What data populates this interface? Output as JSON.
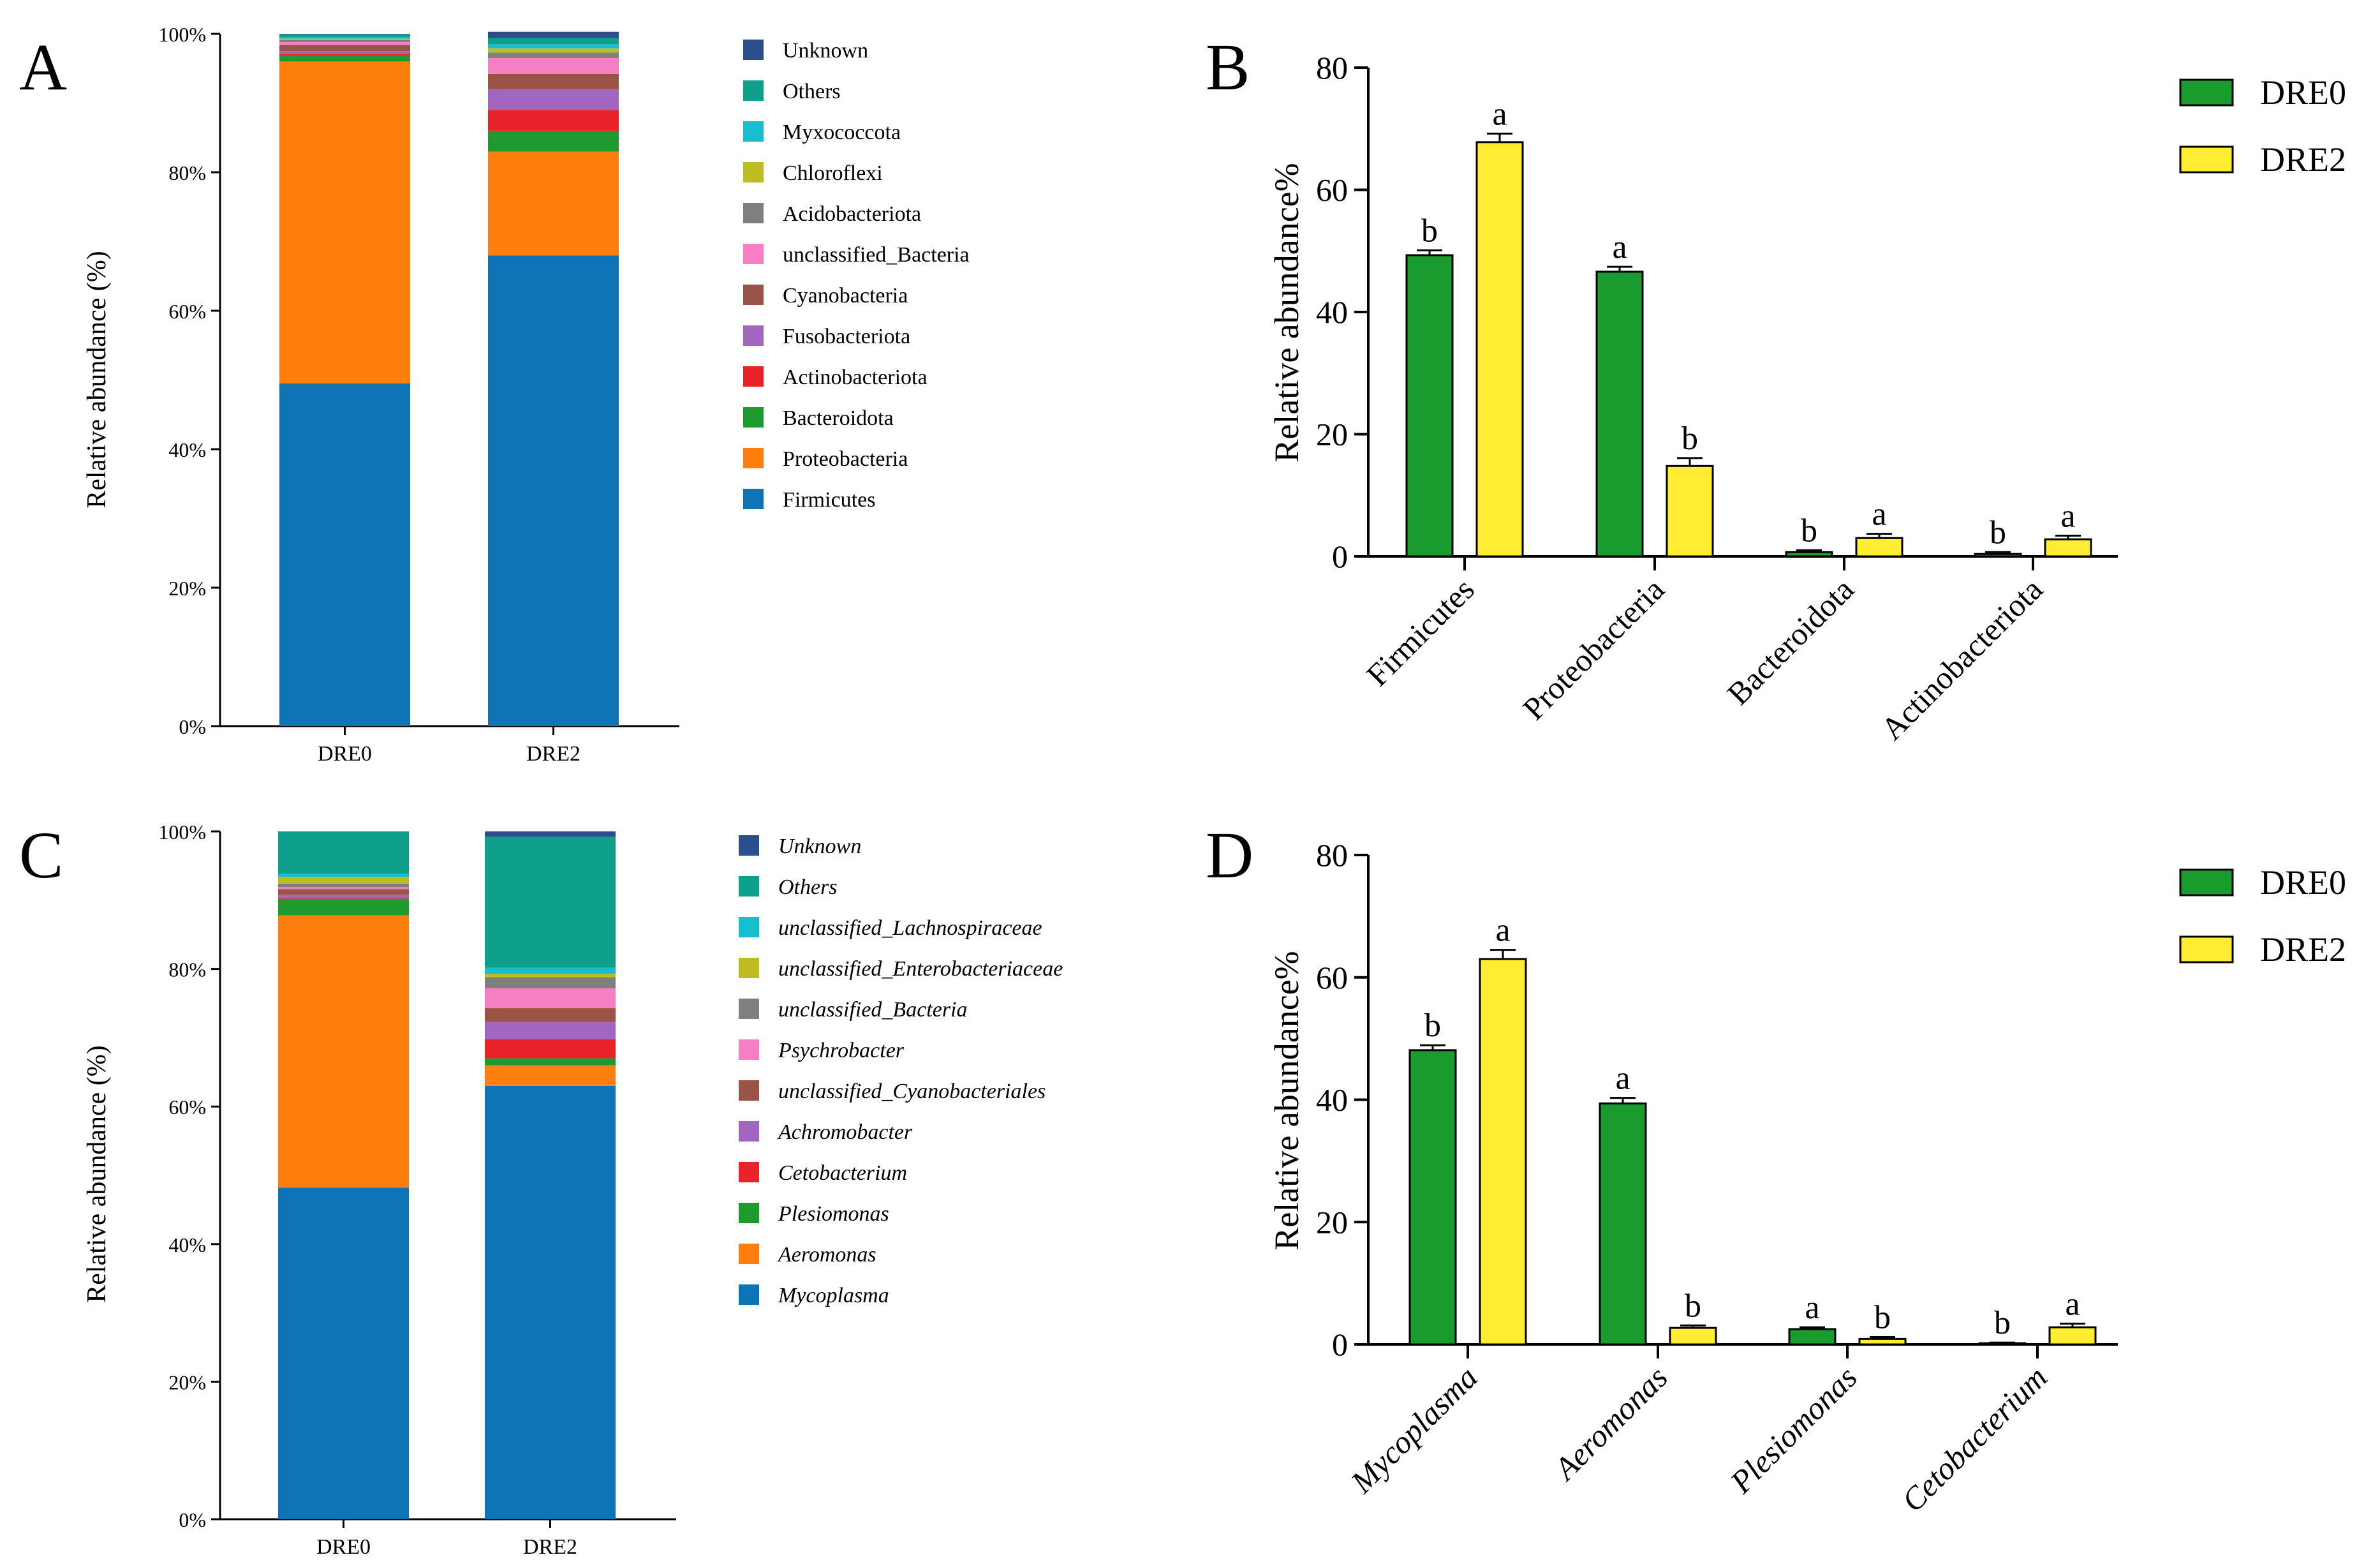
{
  "chart_data": [
    {
      "panel": "A",
      "type": "stacked-bar",
      "ylabel": "Relative abundance (%)",
      "y_ticks": [
        "0%",
        "20%",
        "40%",
        "60%",
        "80%",
        "100%"
      ],
      "ylim": [
        0,
        100
      ],
      "categories": [
        "DRE0",
        "DRE2"
      ],
      "legend_italic": false,
      "series": [
        {
          "name": "Firmicutes",
          "color": "#0F74B5",
          "values": [
            49.5,
            68.0
          ]
        },
        {
          "name": "Proteobacteria",
          "color": "#FF7F0E",
          "values": [
            46.5,
            15.0
          ]
        },
        {
          "name": "Bacteroidota",
          "color": "#1E9A2E",
          "values": [
            0.8,
            3.0
          ]
        },
        {
          "name": "Actinobacteriota",
          "color": "#E8242A",
          "values": [
            0.3,
            3.0
          ]
        },
        {
          "name": "Fusobacteriota",
          "color": "#A066C0",
          "values": [
            0.4,
            3.0
          ]
        },
        {
          "name": "Cyanobacteria",
          "color": "#9A5347",
          "values": [
            0.9,
            2.2
          ]
        },
        {
          "name": "unclassified_Bacteria",
          "color": "#F57FC2",
          "values": [
            0.4,
            2.3
          ]
        },
        {
          "name": "Acidobacteriota",
          "color": "#7F7F7F",
          "values": [
            0.3,
            0.8
          ]
        },
        {
          "name": "Chloroflexi",
          "color": "#BDBD22",
          "values": [
            0.2,
            0.6
          ]
        },
        {
          "name": "Myxococcota",
          "color": "#17BECF",
          "values": [
            0.2,
            0.6
          ]
        },
        {
          "name": "Others",
          "color": "#0EA08A",
          "values": [
            0.4,
            0.9
          ]
        },
        {
          "name": "Unknown",
          "color": "#2B4F8C",
          "values": [
            0.1,
            0.9
          ]
        }
      ]
    },
    {
      "panel": "B",
      "type": "bar",
      "ylabel": "Relative abundance%",
      "ylim": [
        0,
        80
      ],
      "y_ticks": [
        "0",
        "20",
        "40",
        "60",
        "80"
      ],
      "categories": [
        "Firmicutes",
        "Proteobacteria",
        "Bacteroidota",
        "Actinobacteriota"
      ],
      "categories_italic": false,
      "series": [
        {
          "name": "DRE0",
          "color": "#1A9B2D",
          "values": [
            49.3,
            46.6,
            0.7,
            0.4
          ],
          "errors": [
            0.8,
            0.8,
            0.3,
            0.3
          ],
          "letters": [
            "b",
            "a",
            "b",
            "b"
          ]
        },
        {
          "name": "DRE2",
          "color": "#FFEC33",
          "values": [
            67.8,
            14.8,
            3.0,
            2.8
          ],
          "errors": [
            1.4,
            1.3,
            0.7,
            0.6
          ],
          "letters": [
            "a",
            "b",
            "a",
            "a"
          ]
        }
      ]
    },
    {
      "panel": "C",
      "type": "stacked-bar",
      "ylabel": "Relative abundance (%)",
      "y_ticks": [
        "0%",
        "20%",
        "40%",
        "60%",
        "80%",
        "100%"
      ],
      "ylim": [
        0,
        100
      ],
      "categories": [
        "DRE0",
        "DRE2"
      ],
      "legend_italic": true,
      "series": [
        {
          "name": "Mycoplasma",
          "color": "#0F74B5",
          "values": [
            48.2,
            63.0
          ]
        },
        {
          "name": "Aeromonas",
          "color": "#FF7F0E",
          "values": [
            39.6,
            3.0
          ]
        },
        {
          "name": "Plesiomonas",
          "color": "#1E9A2E",
          "values": [
            2.4,
            1.0
          ]
        },
        {
          "name": "Cetobacterium",
          "color": "#E8242A",
          "values": [
            0.1,
            2.8
          ]
        },
        {
          "name": "Achromobacter",
          "color": "#A066C0",
          "values": [
            0.5,
            2.5
          ]
        },
        {
          "name": "unclassified_Cyanobacteriales",
          "color": "#9A5347",
          "values": [
            0.8,
            2.0
          ]
        },
        {
          "name": "Psychrobacter",
          "color": "#F57FC2",
          "values": [
            0.3,
            2.9
          ]
        },
        {
          "name": "unclassified_Bacteria",
          "color": "#7F7F7F",
          "values": [
            0.5,
            1.6
          ]
        },
        {
          "name": "unclassified_Enterobacteriaceae",
          "color": "#BDBD22",
          "values": [
            1.0,
            0.5
          ]
        },
        {
          "name": "unclassified_Lachnospiraceae",
          "color": "#17BECF",
          "values": [
            0.4,
            0.9
          ]
        },
        {
          "name": "Others",
          "color": "#0EA08A",
          "values": [
            6.2,
            19.0
          ]
        },
        {
          "name": "Unknown",
          "color": "#2B4F8C",
          "values": [
            0.0,
            0.8
          ]
        }
      ]
    },
    {
      "panel": "D",
      "type": "bar",
      "ylabel": "Relative abundance%",
      "ylim": [
        0,
        80
      ],
      "y_ticks": [
        "0",
        "20",
        "40",
        "60",
        "80"
      ],
      "categories": [
        "Mycoplasma",
        "Aeromonas",
        "Plesiomonas",
        "Cetobacterium"
      ],
      "categories_italic": true,
      "series": [
        {
          "name": "DRE0",
          "color": "#1A9B2D",
          "values": [
            48.1,
            39.4,
            2.5,
            0.2
          ],
          "errors": [
            0.8,
            0.9,
            0.3,
            0.1
          ],
          "letters": [
            "b",
            "a",
            "a",
            "b"
          ]
        },
        {
          "name": "DRE2",
          "color": "#FFEC33",
          "values": [
            63.0,
            2.7,
            0.9,
            2.8
          ],
          "errors": [
            1.5,
            0.4,
            0.3,
            0.6
          ],
          "letters": [
            "a",
            "b",
            "b",
            "a"
          ]
        }
      ]
    }
  ]
}
